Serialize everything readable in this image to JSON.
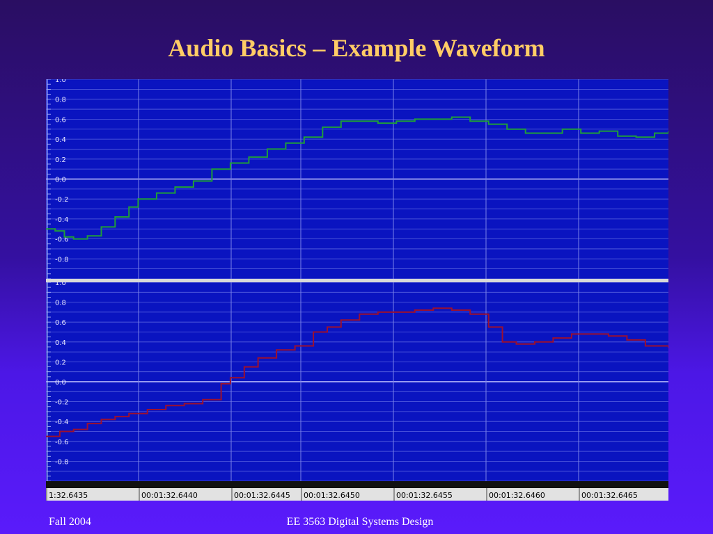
{
  "slide": {
    "title": "Audio Basics – Example Waveform",
    "footer_left": "Fall 2004",
    "footer_center": "EE 3563 Digital Systems Design"
  },
  "colors": {
    "background_top": "#2a0e62",
    "background_bottom": "#5a1bfb",
    "title": "#ffcc66",
    "plot_background": "#0a14c0",
    "channel_1": "#1f9e3a",
    "channel_2": "#9c1030",
    "timeline_background": "#e2e2e2"
  },
  "chart_data": {
    "type": "line",
    "title": "",
    "xlabel": "",
    "ylabel": "",
    "grid": true,
    "ylim": [
      -1.0,
      1.0
    ],
    "y_ticks": [
      "1.0",
      "0.8",
      "0.6",
      "0.4",
      "0.2",
      "0.0",
      "-0.2",
      "-0.4",
      "-0.6",
      "-0.8"
    ],
    "x_ticks": [
      "1:32.6435",
      "00:01:32.6440",
      "00:01:32.6445",
      "00:01:32.6450",
      "00:01:32.6455",
      "00:01:32.6460",
      "00:01:32.6465"
    ],
    "xlim": [
      0,
      6.75
    ],
    "channels": [
      {
        "x": [
          0,
          0.1,
          0.2,
          0.3,
          0.45,
          0.6,
          0.75,
          0.9,
          1.0,
          1.2,
          1.4,
          1.6,
          1.8,
          2.0,
          2.2,
          2.4,
          2.6,
          2.8,
          3.0,
          3.2,
          3.4,
          3.6,
          3.8,
          4.0,
          4.2,
          4.4,
          4.6,
          4.8,
          5.0,
          5.2,
          5.4,
          5.6,
          5.8,
          6.0,
          6.2,
          6.4,
          6.6,
          6.75
        ],
        "values": [
          -0.5,
          -0.52,
          -0.58,
          -0.6,
          -0.57,
          -0.48,
          -0.38,
          -0.28,
          -0.2,
          -0.14,
          -0.08,
          -0.02,
          0.1,
          0.16,
          0.22,
          0.3,
          0.36,
          0.42,
          0.52,
          0.58,
          0.58,
          0.56,
          0.58,
          0.6,
          0.6,
          0.62,
          0.58,
          0.55,
          0.5,
          0.46,
          0.46,
          0.5,
          0.46,
          0.48,
          0.43,
          0.42,
          0.46,
          0.48
        ]
      },
      {
        "x": [
          0,
          0.15,
          0.3,
          0.45,
          0.6,
          0.75,
          0.9,
          1.1,
          1.3,
          1.5,
          1.7,
          1.9,
          2.0,
          2.15,
          2.3,
          2.5,
          2.7,
          2.9,
          3.05,
          3.2,
          3.4,
          3.6,
          3.8,
          4.0,
          4.2,
          4.4,
          4.6,
          4.8,
          4.95,
          5.1,
          5.3,
          5.5,
          5.7,
          5.9,
          6.1,
          6.3,
          6.5,
          6.75
        ],
        "values": [
          -0.55,
          -0.5,
          -0.48,
          -0.42,
          -0.38,
          -0.35,
          -0.32,
          -0.28,
          -0.24,
          -0.22,
          -0.18,
          -0.02,
          0.04,
          0.15,
          0.24,
          0.32,
          0.36,
          0.5,
          0.55,
          0.62,
          0.68,
          0.7,
          0.7,
          0.72,
          0.74,
          0.72,
          0.68,
          0.55,
          0.4,
          0.38,
          0.4,
          0.44,
          0.48,
          0.48,
          0.46,
          0.42,
          0.36,
          0.34
        ]
      }
    ]
  }
}
